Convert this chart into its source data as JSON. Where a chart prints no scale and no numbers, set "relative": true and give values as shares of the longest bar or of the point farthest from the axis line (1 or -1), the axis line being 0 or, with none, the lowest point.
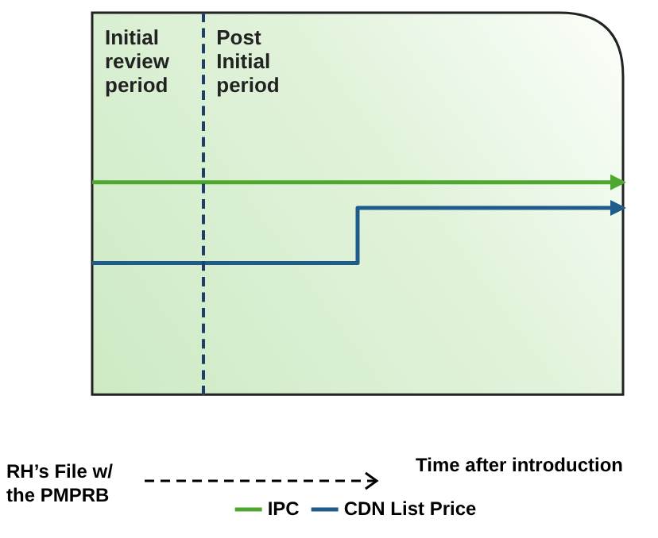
{
  "chart_data": {
    "type": "step",
    "relative": true,
    "xlabel": "Time after introduction",
    "categories": [
      null,
      null,
      null,
      null,
      null,
      null,
      null,
      null,
      null,
      null,
      null
    ],
    "marker": "none",
    "legend": "bottom",
    "grid": false,
    "series": [
      {
        "name": "IPC",
        "color": "#4ea72e",
        "values": [
          1,
          1,
          1,
          1,
          1,
          1,
          1,
          1,
          1,
          1,
          1
        ]
      },
      {
        "name": "CDN List Price",
        "color": "#1f5c8b",
        "values": [
          0.62,
          0.62,
          0.62,
          0.62,
          0.62,
          0.88,
          0.88,
          0.88,
          0.88,
          0.88,
          0.88
        ]
      }
    ],
    "annotations": [
      "Initial review period",
      "Post Initial period",
      "RH’s File w/ the PMPRB"
    ]
  }
}
